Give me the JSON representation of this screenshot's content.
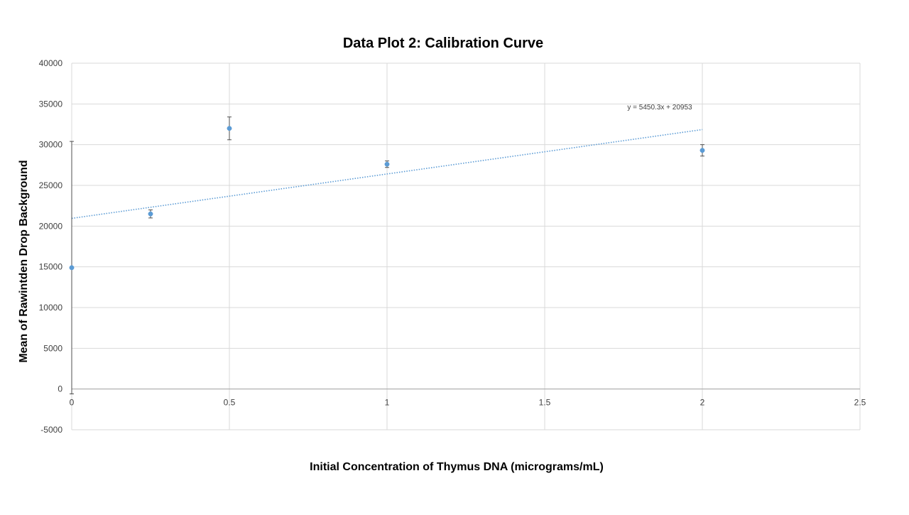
{
  "chart_data": {
    "type": "scatter",
    "title": "Data Plot 2: Calibration Curve",
    "xlabel": "Initial Concentration of Thymus DNA (micrograms/mL)",
    "ylabel": "Mean of Rawintden Drop Background",
    "xlim": [
      0,
      2.5
    ],
    "ylim": [
      -5000,
      40000
    ],
    "x_ticks": [
      0,
      0.5,
      1,
      1.5,
      2,
      2.5
    ],
    "x_tick_labels": [
      "0",
      "0.5",
      "1",
      "1.5",
      "2",
      "2.5"
    ],
    "y_ticks": [
      -5000,
      0,
      5000,
      10000,
      15000,
      20000,
      25000,
      30000,
      35000,
      40000
    ],
    "y_tick_labels": [
      "-5000",
      "0",
      "5000",
      "10000",
      "15000",
      "20000",
      "25000",
      "30000",
      "35000",
      "40000"
    ],
    "grid": true,
    "legend": "none",
    "series": [
      {
        "x": [
          0,
          0.25,
          0.5,
          1,
          2
        ],
        "y": [
          14900,
          21500,
          32000,
          27600,
          29300
        ],
        "error": [
          15500,
          500,
          1400,
          400,
          700
        ],
        "color": "#5B9BD5"
      }
    ],
    "trendline": {
      "type": "linear",
      "slope": 5450.3,
      "intercept": 20953,
      "x_range": [
        0,
        2
      ],
      "equation": "y = 5450.3x + 20953",
      "color": "#5B9BD5"
    }
  }
}
